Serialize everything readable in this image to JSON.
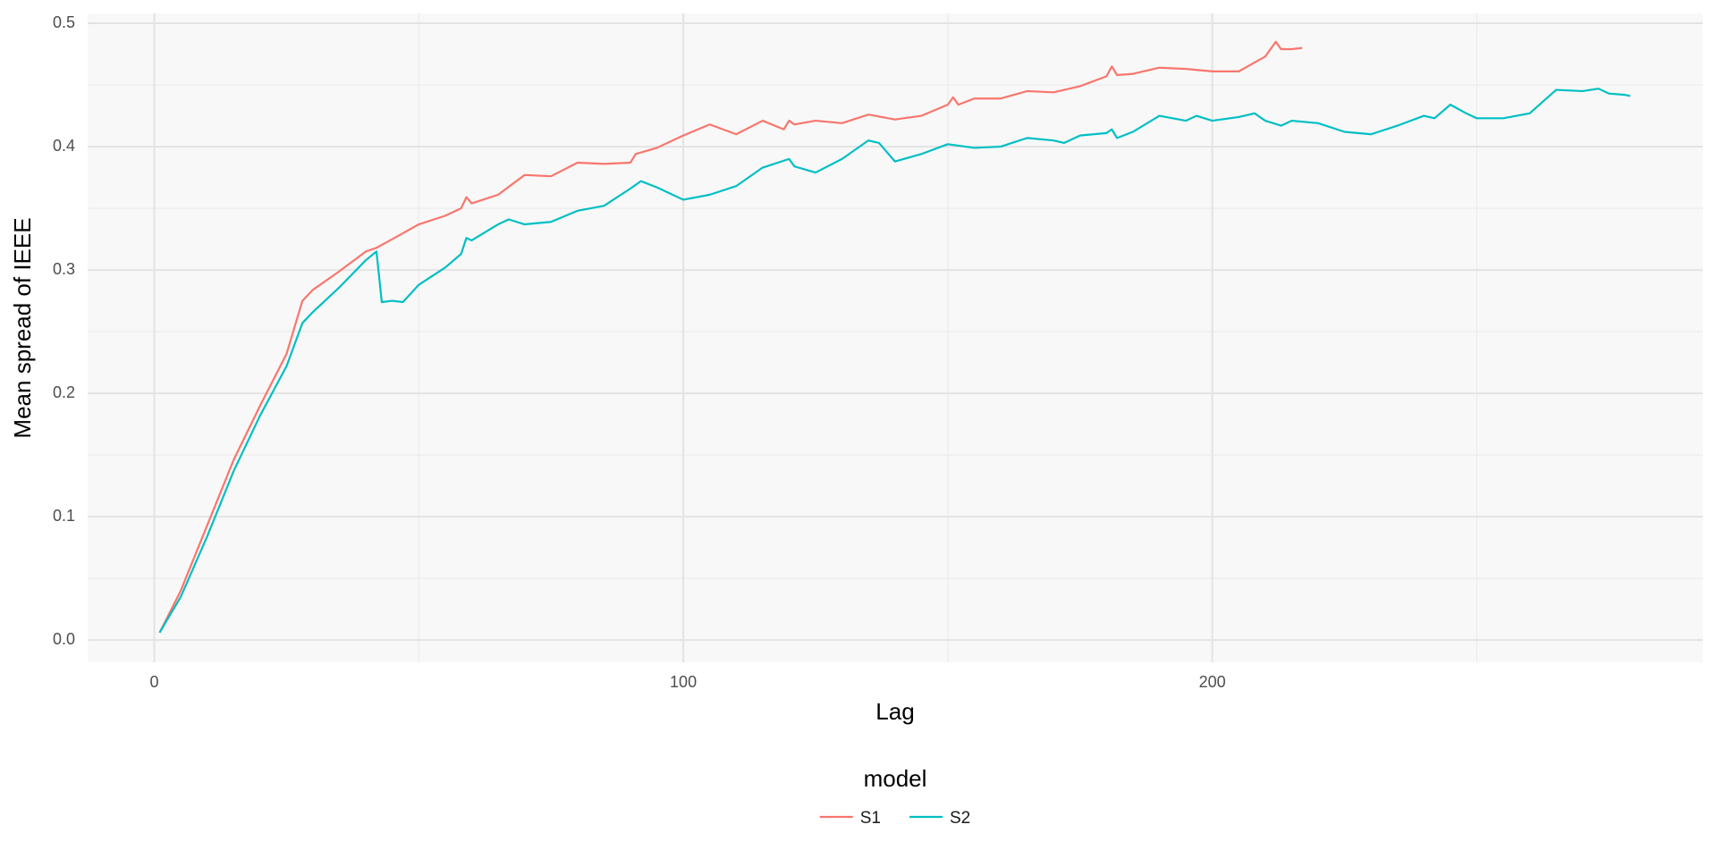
{
  "chart_data": {
    "type": "line",
    "x_label": "Lag",
    "y_label": "Mean spread of IEEE",
    "legend_title": "model",
    "legend_position": "bottom",
    "grid": true,
    "xlim": [
      -12.6,
      292.7
    ],
    "xticks": [
      0,
      100,
      200
    ],
    "ylim": [
      -0.018,
      0.508
    ],
    "yticks": [
      {
        "value": 0,
        "label": "0.0"
      },
      0.1,
      0.2,
      0.3,
      0.4,
      0.5
    ],
    "series": [
      {
        "name": "S1",
        "color": "#F8766D",
        "x": [
          1,
          5,
          10,
          15,
          20,
          25,
          28,
          30,
          35,
          40,
          42,
          45,
          50,
          55,
          58,
          59,
          60,
          65,
          70,
          75,
          80,
          85,
          90,
          91,
          95,
          100,
          105,
          110,
          115,
          119,
          120,
          121,
          125,
          130,
          135,
          140,
          145,
          150,
          151,
          152,
          155,
          160,
          165,
          170,
          175,
          180,
          181,
          182,
          185,
          190,
          195,
          200,
          205,
          210,
          212,
          213,
          215,
          217
        ],
        "values": [
          0.006,
          0.04,
          0.093,
          0.146,
          0.19,
          0.232,
          0.275,
          0.284,
          0.299,
          0.315,
          0.318,
          0.325,
          0.337,
          0.344,
          0.35,
          0.359,
          0.354,
          0.361,
          0.377,
          0.376,
          0.387,
          0.386,
          0.387,
          0.394,
          0.399,
          0.409,
          0.418,
          0.41,
          0.421,
          0.414,
          0.421,
          0.418,
          0.421,
          0.419,
          0.426,
          0.422,
          0.425,
          0.434,
          0.44,
          0.434,
          0.439,
          0.439,
          0.445,
          0.444,
          0.449,
          0.457,
          0.465,
          0.458,
          0.459,
          0.464,
          0.463,
          0.461,
          0.461,
          0.473,
          0.485,
          0.479,
          0.479,
          0.48
        ]
      },
      {
        "name": "S2",
        "color": "#00BFC4",
        "x": [
          1,
          5,
          10,
          15,
          20,
          25,
          28,
          30,
          35,
          40,
          42,
          43,
          45,
          47,
          50,
          55,
          58,
          59,
          60,
          65,
          67,
          70,
          75,
          80,
          85,
          90,
          92,
          95,
          100,
          105,
          110,
          115,
          120,
          121,
          125,
          130,
          135,
          137,
          140,
          145,
          150,
          155,
          160,
          165,
          170,
          172,
          175,
          180,
          181,
          182,
          185,
          190,
          195,
          197,
          200,
          205,
          208,
          210,
          213,
          215,
          220,
          225,
          230,
          235,
          240,
          242,
          245,
          248,
          250,
          255,
          260,
          265,
          270,
          273,
          275,
          278,
          279
        ],
        "values": [
          0.006,
          0.035,
          0.084,
          0.137,
          0.182,
          0.222,
          0.257,
          0.266,
          0.286,
          0.308,
          0.315,
          0.274,
          0.275,
          0.274,
          0.288,
          0.302,
          0.313,
          0.326,
          0.324,
          0.337,
          0.341,
          0.337,
          0.339,
          0.348,
          0.352,
          0.366,
          0.372,
          0.367,
          0.357,
          0.361,
          0.368,
          0.383,
          0.39,
          0.384,
          0.379,
          0.39,
          0.405,
          0.403,
          0.388,
          0.394,
          0.402,
          0.399,
          0.4,
          0.407,
          0.405,
          0.403,
          0.409,
          0.411,
          0.414,
          0.407,
          0.412,
          0.425,
          0.421,
          0.425,
          0.421,
          0.424,
          0.427,
          0.421,
          0.417,
          0.421,
          0.419,
          0.412,
          0.41,
          0.417,
          0.425,
          0.423,
          0.434,
          0.427,
          0.423,
          0.423,
          0.427,
          0.446,
          0.445,
          0.447,
          0.443,
          0.442,
          0.441
        ]
      }
    ]
  }
}
